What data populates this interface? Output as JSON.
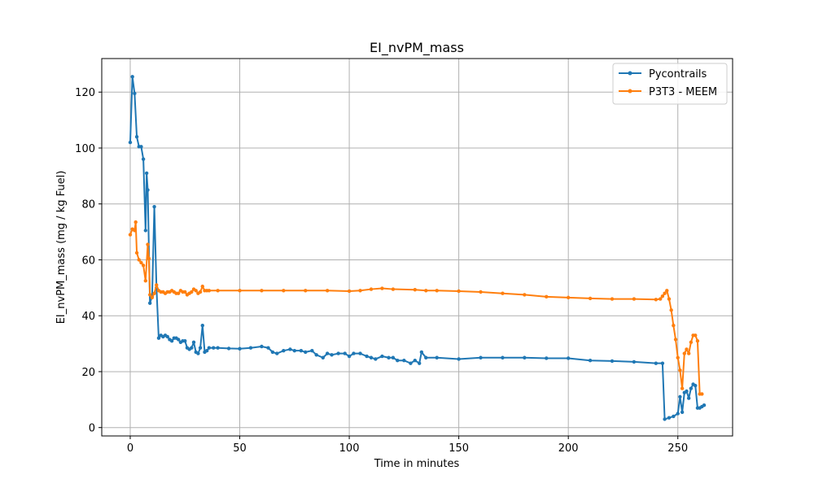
{
  "chart_data": {
    "type": "line",
    "title": "EI_nvPM_mass",
    "xlabel": "Time in minutes",
    "ylabel": "EI_nvPM_mass (mg / kg Fuel)",
    "xlim": [
      -13,
      275
    ],
    "ylim": [
      -3,
      132
    ],
    "xticks": [
      0,
      50,
      100,
      150,
      200,
      250
    ],
    "yticks": [
      0,
      20,
      40,
      60,
      80,
      100,
      120
    ],
    "grid": true,
    "legend_position": "top-right",
    "series": [
      {
        "name": "Pycontrails",
        "color": "#1f77b4",
        "x": [
          0,
          1,
          2,
          3,
          4,
          5,
          6,
          7,
          7.5,
          8,
          9,
          10,
          11,
          12,
          13,
          14,
          15,
          16,
          17,
          18,
          19,
          20,
          21,
          22,
          23,
          24,
          25,
          26,
          27,
          28,
          29,
          30,
          31,
          32,
          33,
          34,
          35,
          36,
          38,
          40,
          45,
          50,
          55,
          60,
          63,
          65,
          67,
          70,
          73,
          75,
          78,
          80,
          83,
          85,
          88,
          90,
          92,
          95,
          98,
          100,
          102,
          105,
          108,
          110,
          112,
          115,
          118,
          120,
          122,
          125,
          128,
          130,
          132,
          133,
          135,
          140,
          150,
          160,
          170,
          180,
          190,
          200,
          210,
          220,
          230,
          240,
          243,
          244,
          246,
          248,
          250,
          251,
          252,
          253,
          254,
          255,
          256,
          257,
          258,
          259,
          260,
          261,
          262
        ],
        "y": [
          102,
          125.5,
          119.5,
          104,
          100.5,
          100.5,
          96,
          70.5,
          91,
          85,
          44.5,
          47,
          79,
          50,
          32,
          33,
          32.5,
          33,
          32.5,
          31.5,
          31,
          32,
          32,
          31.5,
          30.5,
          31,
          31,
          28.5,
          28,
          28.5,
          30.5,
          27,
          26.5,
          28.5,
          36.5,
          27,
          27.5,
          28.5,
          28.5,
          28.5,
          28.3,
          28.2,
          28.5,
          29,
          28.5,
          27,
          26.5,
          27.5,
          28,
          27.5,
          27.5,
          27,
          27.5,
          26,
          25,
          26.5,
          26,
          26.5,
          26.5,
          25.5,
          26.5,
          26.5,
          25.5,
          25,
          24.5,
          25.5,
          25,
          25,
          24,
          24,
          23,
          24,
          23,
          27,
          25,
          25,
          24.5,
          25,
          25,
          25,
          24.8,
          24.8,
          24,
          23.8,
          23.5,
          23,
          23,
          3,
          3.5,
          4,
          5,
          11,
          5.5,
          12.5,
          13,
          10.5,
          14,
          15.5,
          15,
          7,
          7,
          7.5,
          8
        ]
      },
      {
        "name": "P3T3 - MEEM",
        "color": "#ff7f0e",
        "x": [
          0,
          1,
          2,
          2.5,
          3,
          4,
          5,
          6,
          7,
          8,
          8.5,
          9,
          10,
          11,
          12,
          13,
          14,
          15,
          16,
          17,
          18,
          19,
          20,
          21,
          22,
          23,
          24,
          25,
          26,
          27,
          28,
          29,
          30,
          31,
          32,
          33,
          34,
          35,
          36,
          40,
          50,
          60,
          70,
          80,
          90,
          100,
          105,
          110,
          115,
          120,
          130,
          135,
          140,
          150,
          160,
          170,
          180,
          190,
          200,
          210,
          220,
          230,
          240,
          242,
          243,
          244,
          245,
          246,
          247,
          248,
          249,
          250,
          251,
          252,
          253,
          254,
          255,
          256,
          257,
          258,
          259,
          260,
          261
        ],
        "y": [
          69,
          71,
          70.5,
          73.5,
          62.5,
          60,
          59,
          58,
          52.5,
          65.5,
          60.5,
          47.5,
          46.5,
          48,
          51,
          49,
          48.5,
          48.5,
          48,
          48.5,
          48.5,
          49,
          48.5,
          48,
          48,
          49,
          48.5,
          48.5,
          47.5,
          48,
          48.5,
          49.5,
          49,
          48,
          48.5,
          50.5,
          49,
          49,
          49,
          49,
          49,
          49,
          49,
          49,
          49,
          48.8,
          49,
          49.5,
          49.8,
          49.5,
          49.3,
          49,
          49,
          48.8,
          48.5,
          48,
          47.5,
          46.8,
          46.5,
          46.2,
          46,
          46,
          45.8,
          46,
          47,
          48,
          49,
          46,
          42,
          36.5,
          31.5,
          25,
          20.5,
          14,
          26.5,
          28,
          26.5,
          30.5,
          33,
          33,
          31,
          12,
          12
        ]
      }
    ]
  }
}
